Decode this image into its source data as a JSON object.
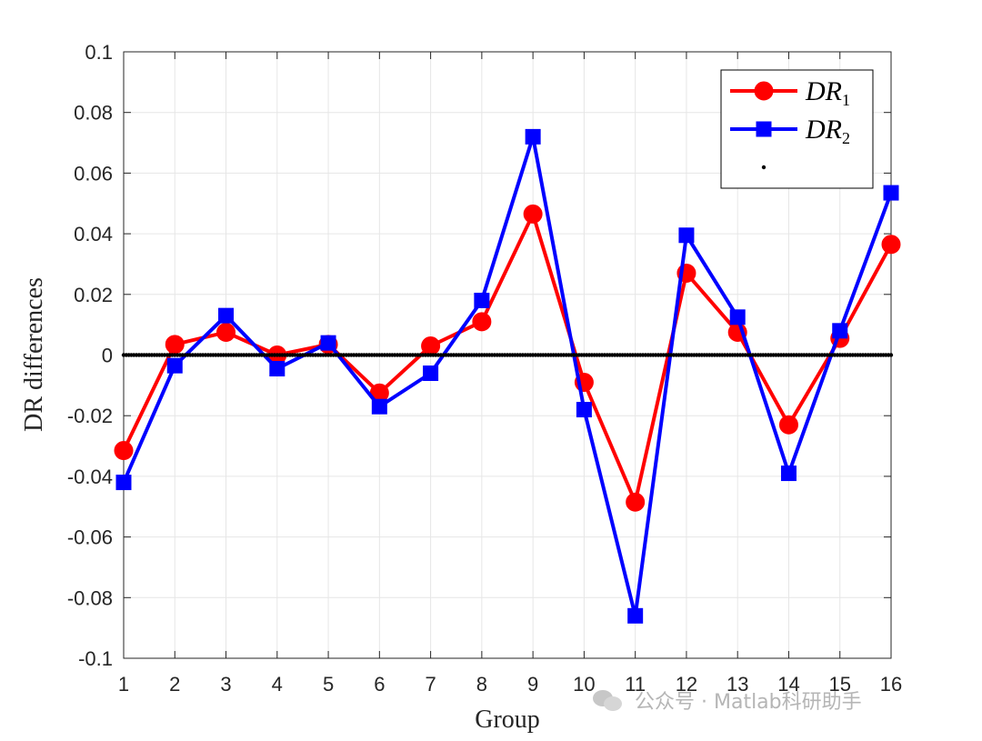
{
  "chart_data": {
    "type": "line",
    "title": "",
    "xlabel": "Group",
    "ylabel": "DR differences",
    "x": [
      1,
      2,
      3,
      4,
      5,
      6,
      7,
      8,
      9,
      10,
      11,
      12,
      13,
      14,
      15,
      16
    ],
    "xlim": [
      1,
      16
    ],
    "ylim": [
      -0.1,
      0.1
    ],
    "yticks": [
      -0.1,
      -0.08,
      -0.06,
      -0.04,
      -0.02,
      0,
      0.02,
      0.04,
      0.06,
      0.08,
      0.1
    ],
    "ytick_labels": [
      "-0.1",
      "-0.08",
      "-0.06",
      "-0.04",
      "-0.02",
      "0",
      "0.02",
      "0.04",
      "0.06",
      "0.08",
      "0.1"
    ],
    "xtick_labels": [
      "1",
      "2",
      "3",
      "4",
      "5",
      "6",
      "7",
      "8",
      "9",
      "10",
      "11",
      "12",
      "13",
      "14",
      "15",
      "16"
    ],
    "grid": true,
    "legend_position": "top-right",
    "series": [
      {
        "name": "DR",
        "subscript": "1",
        "color": "#ff0000",
        "marker": "circle",
        "values": [
          -0.0315,
          0.0035,
          0.0075,
          0.0,
          0.0035,
          -0.0125,
          0.003,
          0.011,
          0.0465,
          -0.009,
          -0.0485,
          0.027,
          0.0075,
          -0.023,
          0.0055,
          0.0365
        ]
      },
      {
        "name": "DR",
        "subscript": "2",
        "color": "#0000ff",
        "marker": "square",
        "values": [
          -0.042,
          -0.0035,
          0.013,
          -0.0045,
          0.004,
          -0.017,
          -0.006,
          0.018,
          0.072,
          -0.018,
          -0.086,
          0.0395,
          0.0125,
          -0.039,
          0.008,
          0.0535
        ]
      },
      {
        "name": "",
        "color": "#000000",
        "marker": "dot",
        "values": [
          0,
          0,
          0,
          0,
          0,
          0,
          0,
          0,
          0,
          0,
          0,
          0,
          0,
          0,
          0,
          0
        ]
      }
    ]
  },
  "watermark": {
    "text": "公众号 · Matlab科研助手",
    "icon": "wechat-icon"
  }
}
